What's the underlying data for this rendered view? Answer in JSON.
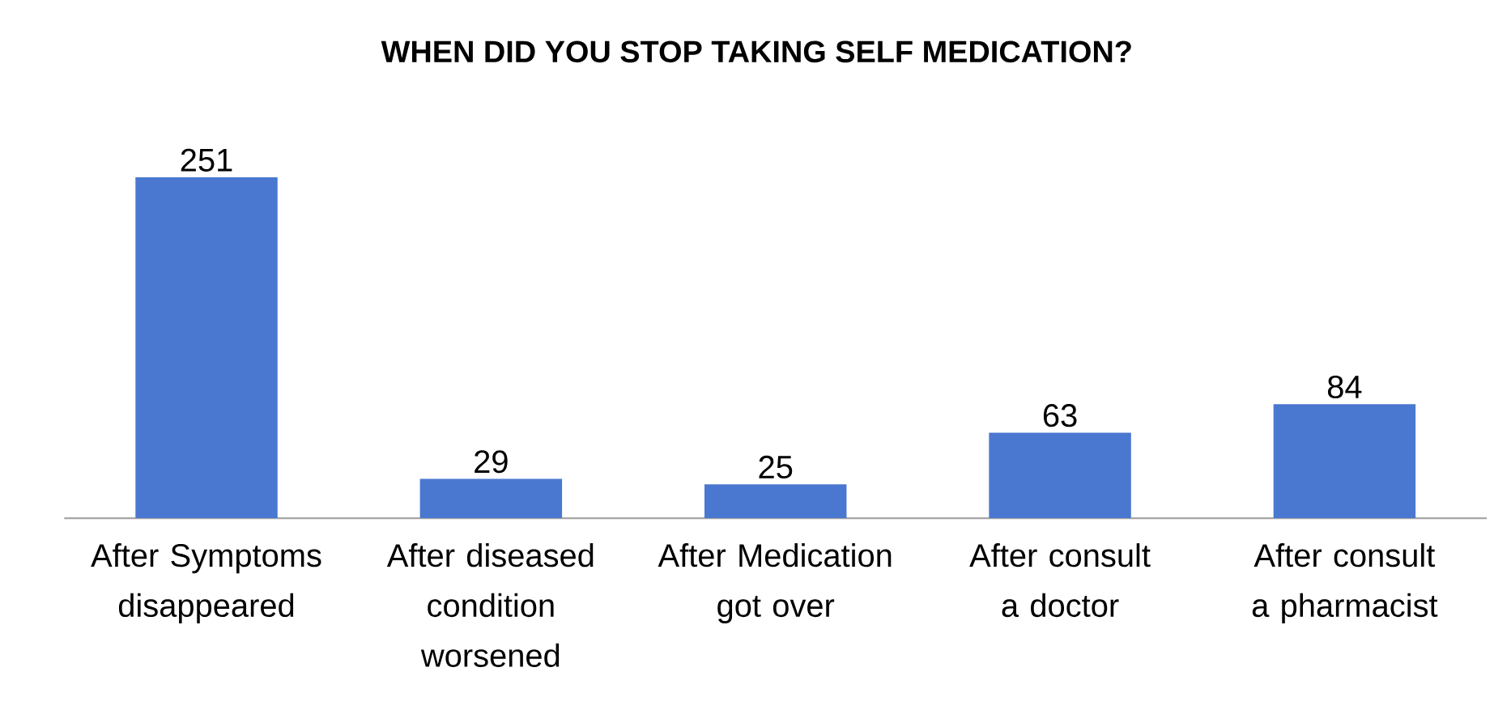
{
  "chart_data": {
    "type": "bar",
    "title": "WHEN DID YOU STOP TAKING SELF MEDICATION?",
    "categories": [
      "After Symptoms disappeared",
      "After diseased condition worsened",
      "After Medication got over",
      "After consult a doctor",
      "After consult a pharmacist"
    ],
    "values": [
      251,
      29,
      25,
      63,
      84
    ],
    "color": "#4a78d0",
    "data_labels": true
  }
}
